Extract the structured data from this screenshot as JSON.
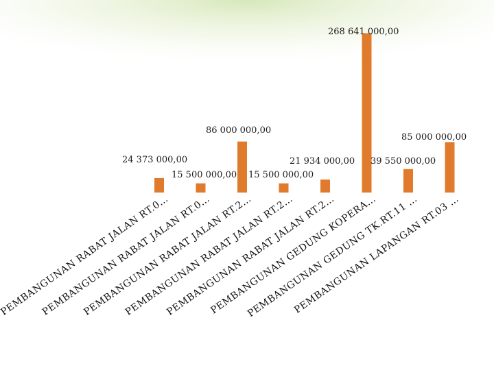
{
  "chart_data": {
    "type": "bar",
    "title": "",
    "xlabel": "",
    "ylabel": "",
    "grid": false,
    "legend": "none",
    "bar_color": "#E07B2D",
    "ylim": [
      0,
      290000000
    ],
    "categories": [
      "PEMBANGUNAN RABAT JALAN RT.0…",
      "PEMBANGUNAN RABAT JALAN RT.0…",
      "PEMBANGUNAN RABAT JALAN RT.2…",
      "PEMBANGUNAN RABAT JALAN RT.2…",
      "PEMBANGUNAN RABAT JALAN RT.2…",
      "PEMBANGUNAN GEDUNG KOPERA…",
      "PEMBANGUNAN GEDUNG TK.RT.11 …",
      "PEMBANGUNAN LAPANGAN RT.03 …"
    ],
    "values": [
      24373000,
      15500000,
      86000000,
      15500000,
      21934000,
      268641000,
      39550000,
      85000000
    ],
    "value_labels": [
      "24 373 000,00",
      "15 500 000,00",
      "86 000 000,00",
      "15 500 000,00",
      "21 934 000,00",
      "268 641 000,00",
      "39 550 000,00",
      "85 000 000,00"
    ]
  }
}
